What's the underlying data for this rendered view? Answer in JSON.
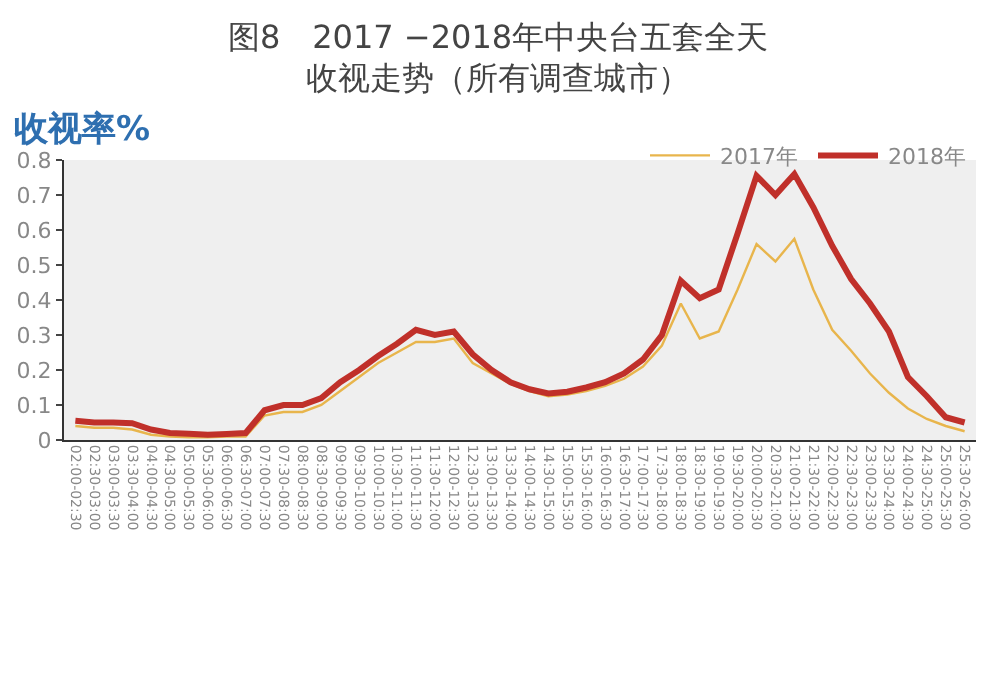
{
  "chart_data": {
    "type": "line",
    "title": "图8　2017 −2018年中央台五套全天",
    "subtitle": "收视走势（所有调查城市）",
    "ylabel": "收视率%",
    "categories": [
      "02:00-02:30",
      "02:30-03:00",
      "03:00-03:30",
      "03:30-04:00",
      "04:00-04:30",
      "04:30-05:00",
      "05:00-05:30",
      "05:30-06:00",
      "06:00-06:30",
      "06:30-07:00",
      "07:00-07:30",
      "07:30-08:00",
      "08:00-08:30",
      "08:30-09:00",
      "09:00-09:30",
      "09:30-10:00",
      "10:00-10:30",
      "10:30-11:00",
      "11:00-11:30",
      "11:30-12:00",
      "12:00-12:30",
      "12:30-13:00",
      "13:00-13:30",
      "13:30-14:00",
      "14:00-14:30",
      "14:30-15:00",
      "15:00-15:30",
      "15:30-16:00",
      "16:00-16:30",
      "16:30-17:00",
      "17:00-17:30",
      "17:30-18:00",
      "18:00-18:30",
      "18:30-19:00",
      "19:00-19:30",
      "19:30-20:00",
      "20:00-20:30",
      "20:30-21:00",
      "21:00-21:30",
      "21:30-22:00",
      "22:00-22:30",
      "22:30-23:00",
      "23:00-23:30",
      "23:30-24:00",
      "24:00-24:30",
      "24:30-25:00",
      "25:00-25:30",
      "25:30-26:00"
    ],
    "series": [
      {
        "name": "2017年",
        "color": "#e8b54c",
        "values": [
          0.04,
          0.035,
          0.035,
          0.03,
          0.015,
          0.01,
          0.008,
          0.008,
          0.01,
          0.01,
          0.07,
          0.08,
          0.08,
          0.1,
          0.14,
          0.18,
          0.22,
          0.25,
          0.28,
          0.28,
          0.29,
          0.22,
          0.19,
          0.16,
          0.14,
          0.125,
          0.13,
          0.14,
          0.155,
          0.175,
          0.21,
          0.27,
          0.39,
          0.29,
          0.31,
          0.43,
          0.56,
          0.51,
          0.575,
          0.43,
          0.315,
          0.255,
          0.19,
          0.135,
          0.09,
          0.06,
          0.04,
          0.025
        ]
      },
      {
        "name": "2018年",
        "color": "#c0302a",
        "values": [
          0.055,
          0.05,
          0.05,
          0.048,
          0.03,
          0.02,
          0.018,
          0.015,
          0.017,
          0.02,
          0.085,
          0.1,
          0.1,
          0.12,
          0.165,
          0.2,
          0.24,
          0.275,
          0.315,
          0.3,
          0.31,
          0.245,
          0.2,
          0.165,
          0.145,
          0.133,
          0.138,
          0.15,
          0.165,
          0.19,
          0.23,
          0.3,
          0.455,
          0.405,
          0.43,
          0.59,
          0.755,
          0.7,
          0.76,
          0.665,
          0.555,
          0.46,
          0.39,
          0.31,
          0.18,
          0.125,
          0.065,
          0.05
        ]
      }
    ],
    "ylim": [
      0,
      0.8
    ],
    "yticks": [
      0,
      0.1,
      0.2,
      0.3,
      0.4,
      0.5,
      0.6,
      0.7,
      0.8
    ],
    "legend": "top right",
    "marker": "none",
    "line_style": "solid",
    "grid": false
  }
}
